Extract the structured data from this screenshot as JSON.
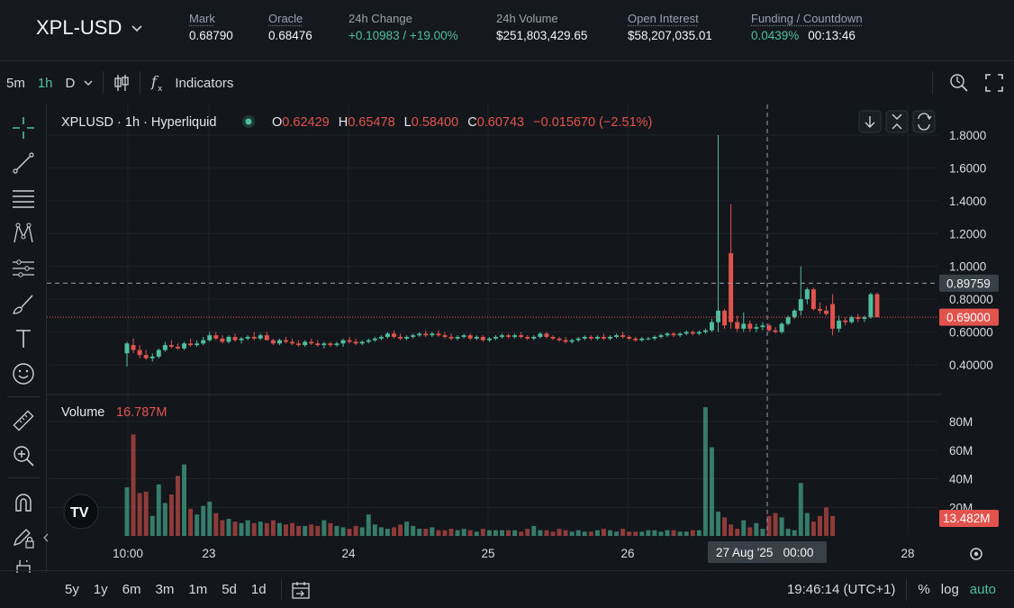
{
  "header": {
    "symbol": "XPL-USD",
    "mark": {
      "label": "Mark",
      "value": "0.68790"
    },
    "oracle": {
      "label": "Oracle",
      "value": "0.68476"
    },
    "change": {
      "label": "24h Change",
      "value": "+0.10983 / +19.00%"
    },
    "volume": {
      "label": "24h Volume",
      "value": "$251,803,429.65"
    },
    "open_interest": {
      "label": "Open Interest",
      "value": "$58,207,035.01"
    },
    "funding": {
      "label": "Funding / Countdown",
      "rate": "0.0439%",
      "countdown": "00:13:46"
    }
  },
  "toolbar": {
    "intervals": [
      "5m",
      "1h",
      "D"
    ],
    "active_interval": "1h",
    "indicators_label": "Indicators"
  },
  "legend": {
    "title": "XPLUSD · 1h · Hyperliquid",
    "o_label": "O",
    "o": "0.62429",
    "h_label": "H",
    "h": "0.65478",
    "l_label": "L",
    "l": "0.58400",
    "c_label": "C",
    "c": "0.60743",
    "change": "−0.015670 (−2.51%)"
  },
  "volume_legend": {
    "label": "Volume",
    "value": "16.787M"
  },
  "price_labels": {
    "crosshair": "0.89759",
    "last": "0.69000",
    "volume_last": "13.482M"
  },
  "time_axis": {
    "crosshair": "27 Aug '25   00:00"
  },
  "bottom": {
    "ranges": [
      "5y",
      "1y",
      "6m",
      "3m",
      "1m",
      "5d",
      "1d"
    ],
    "clock": "19:46:14 (UTC+1)",
    "percent": "%",
    "log": "log",
    "auto": "auto"
  },
  "colors": {
    "up": "#4fbf9f",
    "down": "#e2534d",
    "bg": "#13171c"
  },
  "chart_data": {
    "type": "candlestick",
    "title": "XPLUSD · 1h · Hyperliquid",
    "price_axis_ticks": [
      0.4,
      0.6,
      0.8,
      1.0,
      1.2,
      1.4,
      1.6,
      1.8
    ],
    "price_axis_tick_labels": [
      "0.40000",
      "0.60000",
      "0.80000",
      "1.0000",
      "1.2000",
      "1.4000",
      "1.6000",
      "1.8000"
    ],
    "volume_axis_ticks": [
      20,
      40,
      60,
      80
    ],
    "volume_axis_tick_labels": [
      "20M",
      "40M",
      "60M",
      "80M"
    ],
    "x_tick_labels": [
      "10:00",
      "23",
      "24",
      "25",
      "26",
      "27 Aug '25",
      "28"
    ],
    "volume_unit": "M",
    "candles": [
      {
        "o": 0.47,
        "h": 0.54,
        "l": 0.39,
        "c": 0.53
      },
      {
        "o": 0.52,
        "h": 0.56,
        "l": 0.47,
        "c": 0.49
      },
      {
        "o": 0.49,
        "h": 0.52,
        "l": 0.44,
        "c": 0.46
      },
      {
        "o": 0.46,
        "h": 0.49,
        "l": 0.43,
        "c": 0.44
      },
      {
        "o": 0.44,
        "h": 0.47,
        "l": 0.42,
        "c": 0.45
      },
      {
        "o": 0.45,
        "h": 0.5,
        "l": 0.44,
        "c": 0.49
      },
      {
        "o": 0.49,
        "h": 0.54,
        "l": 0.48,
        "c": 0.52
      },
      {
        "o": 0.52,
        "h": 0.55,
        "l": 0.5,
        "c": 0.51
      },
      {
        "o": 0.51,
        "h": 0.53,
        "l": 0.49,
        "c": 0.5
      },
      {
        "o": 0.5,
        "h": 0.54,
        "l": 0.49,
        "c": 0.53
      },
      {
        "o": 0.53,
        "h": 0.56,
        "l": 0.51,
        "c": 0.52
      },
      {
        "o": 0.52,
        "h": 0.55,
        "l": 0.51,
        "c": 0.53
      },
      {
        "o": 0.53,
        "h": 0.57,
        "l": 0.52,
        "c": 0.55
      },
      {
        "o": 0.55,
        "h": 0.6,
        "l": 0.54,
        "c": 0.58
      },
      {
        "o": 0.58,
        "h": 0.6,
        "l": 0.55,
        "c": 0.56
      },
      {
        "o": 0.56,
        "h": 0.58,
        "l": 0.53,
        "c": 0.54
      },
      {
        "o": 0.54,
        "h": 0.58,
        "l": 0.53,
        "c": 0.57
      },
      {
        "o": 0.57,
        "h": 0.59,
        "l": 0.54,
        "c": 0.55
      },
      {
        "o": 0.55,
        "h": 0.57,
        "l": 0.53,
        "c": 0.56
      },
      {
        "o": 0.56,
        "h": 0.58,
        "l": 0.55,
        "c": 0.57
      },
      {
        "o": 0.57,
        "h": 0.6,
        "l": 0.55,
        "c": 0.56
      },
      {
        "o": 0.56,
        "h": 0.59,
        "l": 0.55,
        "c": 0.58
      },
      {
        "o": 0.58,
        "h": 0.6,
        "l": 0.55,
        "c": 0.55
      },
      {
        "o": 0.55,
        "h": 0.56,
        "l": 0.52,
        "c": 0.53
      },
      {
        "o": 0.53,
        "h": 0.56,
        "l": 0.52,
        "c": 0.55
      },
      {
        "o": 0.55,
        "h": 0.57,
        "l": 0.53,
        "c": 0.54
      },
      {
        "o": 0.54,
        "h": 0.56,
        "l": 0.52,
        "c": 0.53
      },
      {
        "o": 0.53,
        "h": 0.55,
        "l": 0.51,
        "c": 0.52
      },
      {
        "o": 0.52,
        "h": 0.55,
        "l": 0.51,
        "c": 0.54
      },
      {
        "o": 0.54,
        "h": 0.56,
        "l": 0.52,
        "c": 0.53
      },
      {
        "o": 0.53,
        "h": 0.55,
        "l": 0.51,
        "c": 0.52
      },
      {
        "o": 0.52,
        "h": 0.54,
        "l": 0.5,
        "c": 0.53
      },
      {
        "o": 0.53,
        "h": 0.54,
        "l": 0.51,
        "c": 0.52
      },
      {
        "o": 0.52,
        "h": 0.54,
        "l": 0.51,
        "c": 0.53
      },
      {
        "o": 0.53,
        "h": 0.56,
        "l": 0.51,
        "c": 0.55
      },
      {
        "o": 0.55,
        "h": 0.57,
        "l": 0.53,
        "c": 0.54
      },
      {
        "o": 0.54,
        "h": 0.56,
        "l": 0.52,
        "c": 0.53
      },
      {
        "o": 0.53,
        "h": 0.55,
        "l": 0.52,
        "c": 0.54
      },
      {
        "o": 0.54,
        "h": 0.56,
        "l": 0.53,
        "c": 0.55
      },
      {
        "o": 0.55,
        "h": 0.57,
        "l": 0.54,
        "c": 0.56
      },
      {
        "o": 0.56,
        "h": 0.58,
        "l": 0.55,
        "c": 0.57
      },
      {
        "o": 0.57,
        "h": 0.6,
        "l": 0.56,
        "c": 0.59
      },
      {
        "o": 0.59,
        "h": 0.61,
        "l": 0.56,
        "c": 0.57
      },
      {
        "o": 0.57,
        "h": 0.59,
        "l": 0.55,
        "c": 0.56
      },
      {
        "o": 0.56,
        "h": 0.58,
        "l": 0.55,
        "c": 0.57
      },
      {
        "o": 0.57,
        "h": 0.59,
        "l": 0.56,
        "c": 0.58
      },
      {
        "o": 0.58,
        "h": 0.6,
        "l": 0.57,
        "c": 0.59
      },
      {
        "o": 0.59,
        "h": 0.61,
        "l": 0.57,
        "c": 0.58
      },
      {
        "o": 0.58,
        "h": 0.6,
        "l": 0.57,
        "c": 0.59
      },
      {
        "o": 0.59,
        "h": 0.61,
        "l": 0.57,
        "c": 0.58
      },
      {
        "o": 0.58,
        "h": 0.6,
        "l": 0.56,
        "c": 0.57
      },
      {
        "o": 0.57,
        "h": 0.59,
        "l": 0.55,
        "c": 0.56
      },
      {
        "o": 0.56,
        "h": 0.58,
        "l": 0.55,
        "c": 0.57
      },
      {
        "o": 0.57,
        "h": 0.59,
        "l": 0.56,
        "c": 0.58
      },
      {
        "o": 0.58,
        "h": 0.59,
        "l": 0.55,
        "c": 0.56
      },
      {
        "o": 0.56,
        "h": 0.58,
        "l": 0.55,
        "c": 0.57
      },
      {
        "o": 0.57,
        "h": 0.58,
        "l": 0.54,
        "c": 0.55
      },
      {
        "o": 0.55,
        "h": 0.57,
        "l": 0.54,
        "c": 0.56
      },
      {
        "o": 0.56,
        "h": 0.58,
        "l": 0.55,
        "c": 0.57
      },
      {
        "o": 0.57,
        "h": 0.59,
        "l": 0.56,
        "c": 0.58
      },
      {
        "o": 0.58,
        "h": 0.59,
        "l": 0.56,
        "c": 0.57
      },
      {
        "o": 0.57,
        "h": 0.59,
        "l": 0.56,
        "c": 0.58
      },
      {
        "o": 0.58,
        "h": 0.6,
        "l": 0.56,
        "c": 0.57
      },
      {
        "o": 0.57,
        "h": 0.58,
        "l": 0.55,
        "c": 0.56
      },
      {
        "o": 0.56,
        "h": 0.58,
        "l": 0.55,
        "c": 0.57
      },
      {
        "o": 0.57,
        "h": 0.6,
        "l": 0.56,
        "c": 0.59
      },
      {
        "o": 0.59,
        "h": 0.6,
        "l": 0.56,
        "c": 0.57
      },
      {
        "o": 0.57,
        "h": 0.58,
        "l": 0.55,
        "c": 0.56
      },
      {
        "o": 0.56,
        "h": 0.57,
        "l": 0.54,
        "c": 0.55
      },
      {
        "o": 0.55,
        "h": 0.57,
        "l": 0.53,
        "c": 0.54
      },
      {
        "o": 0.54,
        "h": 0.56,
        "l": 0.53,
        "c": 0.55
      },
      {
        "o": 0.55,
        "h": 0.57,
        "l": 0.54,
        "c": 0.56
      },
      {
        "o": 0.56,
        "h": 0.58,
        "l": 0.55,
        "c": 0.57
      },
      {
        "o": 0.57,
        "h": 0.58,
        "l": 0.55,
        "c": 0.56
      },
      {
        "o": 0.56,
        "h": 0.58,
        "l": 0.55,
        "c": 0.57
      },
      {
        "o": 0.57,
        "h": 0.59,
        "l": 0.55,
        "c": 0.56
      },
      {
        "o": 0.56,
        "h": 0.58,
        "l": 0.55,
        "c": 0.57
      },
      {
        "o": 0.57,
        "h": 0.59,
        "l": 0.56,
        "c": 0.58
      },
      {
        "o": 0.58,
        "h": 0.6,
        "l": 0.56,
        "c": 0.57
      },
      {
        "o": 0.57,
        "h": 0.58,
        "l": 0.55,
        "c": 0.56
      },
      {
        "o": 0.56,
        "h": 0.57,
        "l": 0.54,
        "c": 0.55
      },
      {
        "o": 0.55,
        "h": 0.57,
        "l": 0.54,
        "c": 0.56
      },
      {
        "o": 0.56,
        "h": 0.57,
        "l": 0.55,
        "c": 0.56
      },
      {
        "o": 0.56,
        "h": 0.58,
        "l": 0.55,
        "c": 0.57
      },
      {
        "o": 0.57,
        "h": 0.59,
        "l": 0.56,
        "c": 0.58
      },
      {
        "o": 0.58,
        "h": 0.6,
        "l": 0.57,
        "c": 0.59
      },
      {
        "o": 0.59,
        "h": 0.6,
        "l": 0.57,
        "c": 0.58
      },
      {
        "o": 0.58,
        "h": 0.6,
        "l": 0.57,
        "c": 0.59
      },
      {
        "o": 0.59,
        "h": 0.61,
        "l": 0.58,
        "c": 0.6
      },
      {
        "o": 0.6,
        "h": 0.61,
        "l": 0.58,
        "c": 0.59
      },
      {
        "o": 0.59,
        "h": 0.61,
        "l": 0.58,
        "c": 0.6
      },
      {
        "o": 0.6,
        "h": 0.62,
        "l": 0.59,
        "c": 0.61
      },
      {
        "o": 0.61,
        "h": 0.68,
        "l": 0.6,
        "c": 0.66
      },
      {
        "o": 0.66,
        "h": 1.8,
        "l": 0.6,
        "c": 0.73
      },
      {
        "o": 0.73,
        "h": 0.74,
        "l": 0.62,
        "c": 0.64
      },
      {
        "o": 1.08,
        "h": 1.38,
        "l": 0.62,
        "c": 0.66
      },
      {
        "o": 0.66,
        "h": 0.7,
        "l": 0.6,
        "c": 0.62
      },
      {
        "o": 0.62,
        "h": 0.72,
        "l": 0.6,
        "c": 0.65
      },
      {
        "o": 0.65,
        "h": 0.67,
        "l": 0.6,
        "c": 0.62
      },
      {
        "o": 0.62,
        "h": 0.65,
        "l": 0.6,
        "c": 0.63
      },
      {
        "o": 0.63,
        "h": 0.66,
        "l": 0.61,
        "c": 0.64
      },
      {
        "o": 0.64,
        "h": 0.65,
        "l": 0.6,
        "c": 0.61
      },
      {
        "o": 0.61,
        "h": 0.63,
        "l": 0.59,
        "c": 0.6
      },
      {
        "o": 0.6,
        "h": 0.66,
        "l": 0.59,
        "c": 0.65
      },
      {
        "o": 0.65,
        "h": 0.7,
        "l": 0.64,
        "c": 0.69
      },
      {
        "o": 0.69,
        "h": 0.74,
        "l": 0.68,
        "c": 0.73
      },
      {
        "o": 0.73,
        "h": 1.0,
        "l": 0.7,
        "c": 0.8
      },
      {
        "o": 0.8,
        "h": 0.87,
        "l": 0.77,
        "c": 0.86
      },
      {
        "o": 0.86,
        "h": 0.87,
        "l": 0.73,
        "c": 0.74
      },
      {
        "o": 0.74,
        "h": 0.78,
        "l": 0.71,
        "c": 0.73
      },
      {
        "o": 0.73,
        "h": 0.76,
        "l": 0.7,
        "c": 0.71
      },
      {
        "o": 0.77,
        "h": 0.83,
        "l": 0.58,
        "c": 0.62
      },
      {
        "o": 0.62,
        "h": 0.7,
        "l": 0.6,
        "c": 0.67
      },
      {
        "o": 0.67,
        "h": 0.69,
        "l": 0.64,
        "c": 0.66
      },
      {
        "o": 0.66,
        "h": 0.7,
        "l": 0.65,
        "c": 0.69
      },
      {
        "o": 0.69,
        "h": 0.71,
        "l": 0.66,
        "c": 0.68
      },
      {
        "o": 0.68,
        "h": 0.7,
        "l": 0.66,
        "c": 0.69
      },
      {
        "o": 0.69,
        "h": 0.84,
        "l": 0.68,
        "c": 0.83
      },
      {
        "o": 0.83,
        "h": 0.84,
        "l": 0.69,
        "c": 0.69
      }
    ],
    "volumes": [
      34,
      71,
      30,
      31,
      14,
      36,
      23,
      29,
      42,
      50,
      19,
      15,
      21,
      24,
      16,
      11,
      12,
      10,
      9,
      11,
      9,
      10,
      9,
      11,
      9,
      8,
      9,
      7,
      7,
      8,
      7,
      11,
      9,
      7,
      6,
      5,
      7,
      6,
      15,
      8,
      6,
      5,
      6,
      8,
      10,
      7,
      5,
      5,
      6,
      4,
      4,
      5,
      4,
      5,
      4,
      3,
      5,
      4,
      4,
      4,
      4,
      4,
      3,
      5,
      7,
      4,
      4,
      3,
      5,
      4,
      3,
      4,
      3,
      3,
      4,
      5,
      4,
      3,
      5,
      3,
      3,
      3,
      4,
      4,
      3,
      4,
      4,
      3,
      3,
      4,
      4,
      90,
      62,
      17,
      13,
      8,
      5,
      11,
      6,
      9,
      5,
      14,
      16,
      13,
      5,
      4,
      37,
      16,
      10,
      14,
      20,
      14
    ]
  }
}
